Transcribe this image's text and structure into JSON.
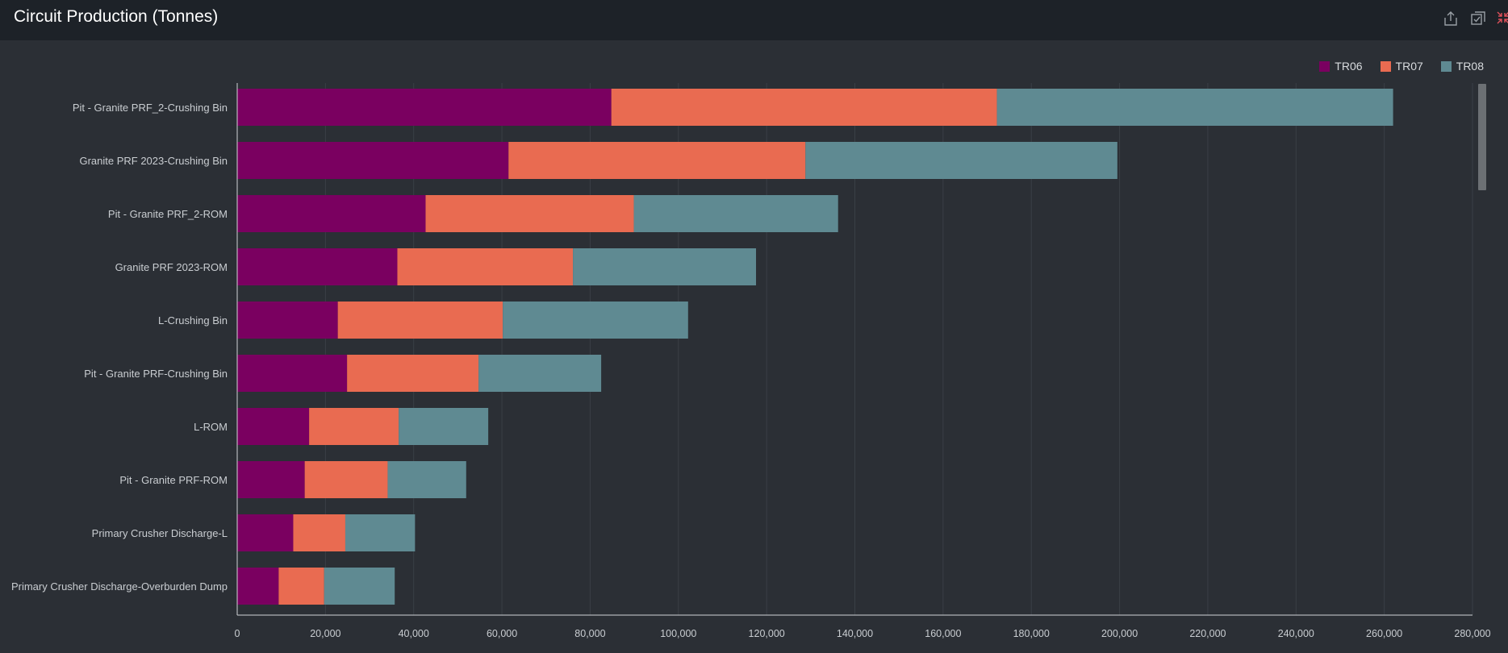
{
  "header": {
    "title": "Circuit Production (Tonnes)",
    "icons": [
      "export-icon",
      "copy-icon",
      "minimize-icon"
    ]
  },
  "colors": {
    "TR06": "#7a0060",
    "TR07": "#e96b51",
    "TR08": "#5f8a92",
    "minimize": "#e0505a"
  },
  "legend": {
    "position": "top-right",
    "items": [
      {
        "label": "TR06",
        "color": "#7a0060"
      },
      {
        "label": "TR07",
        "color": "#e96b51"
      },
      {
        "label": "TR08",
        "color": "#5f8a92"
      }
    ]
  },
  "chart_data": {
    "type": "bar",
    "orientation": "horizontal",
    "stacked": true,
    "title": "Circuit Production (Tonnes)",
    "categories": [
      "Pit - Granite PRF_2-Crushing Bin",
      "Granite PRF 2023-Crushing Bin",
      "Pit - Granite PRF_2-ROM",
      "Granite PRF 2023-ROM",
      "L-Crushing Bin",
      "Pit - Granite PRF-Crushing Bin",
      "L-ROM",
      "Pit - Granite PRF-ROM",
      "Primary Crusher Discharge-L",
      "Primary Crusher Discharge-Overburden Dump"
    ],
    "series": [
      {
        "name": "TR06",
        "color": "#7a0060",
        "values": [
          84800,
          61500,
          42700,
          36300,
          22800,
          24900,
          16300,
          15300,
          12700,
          9400
        ]
      },
      {
        "name": "TR07",
        "color": "#e96b51",
        "values": [
          87400,
          67300,
          47200,
          39800,
          37400,
          29800,
          20300,
          18800,
          11800,
          10300
        ]
      },
      {
        "name": "TR08",
        "color": "#5f8a92",
        "values": [
          89800,
          70700,
          46300,
          41500,
          42000,
          27800,
          20300,
          17800,
          15800,
          16000
        ]
      }
    ],
    "xlim": [
      0,
      280000
    ],
    "xticks": [
      0,
      20000,
      40000,
      60000,
      80000,
      100000,
      120000,
      140000,
      160000,
      180000,
      200000,
      220000,
      240000,
      260000,
      280000
    ],
    "xtick_labels": [
      "0",
      "20,000",
      "40,000",
      "60,000",
      "80,000",
      "100,000",
      "120,000",
      "140,000",
      "160,000",
      "180,000",
      "200,000",
      "220,000",
      "240,000",
      "260,000",
      "280,000"
    ],
    "grid": true
  }
}
